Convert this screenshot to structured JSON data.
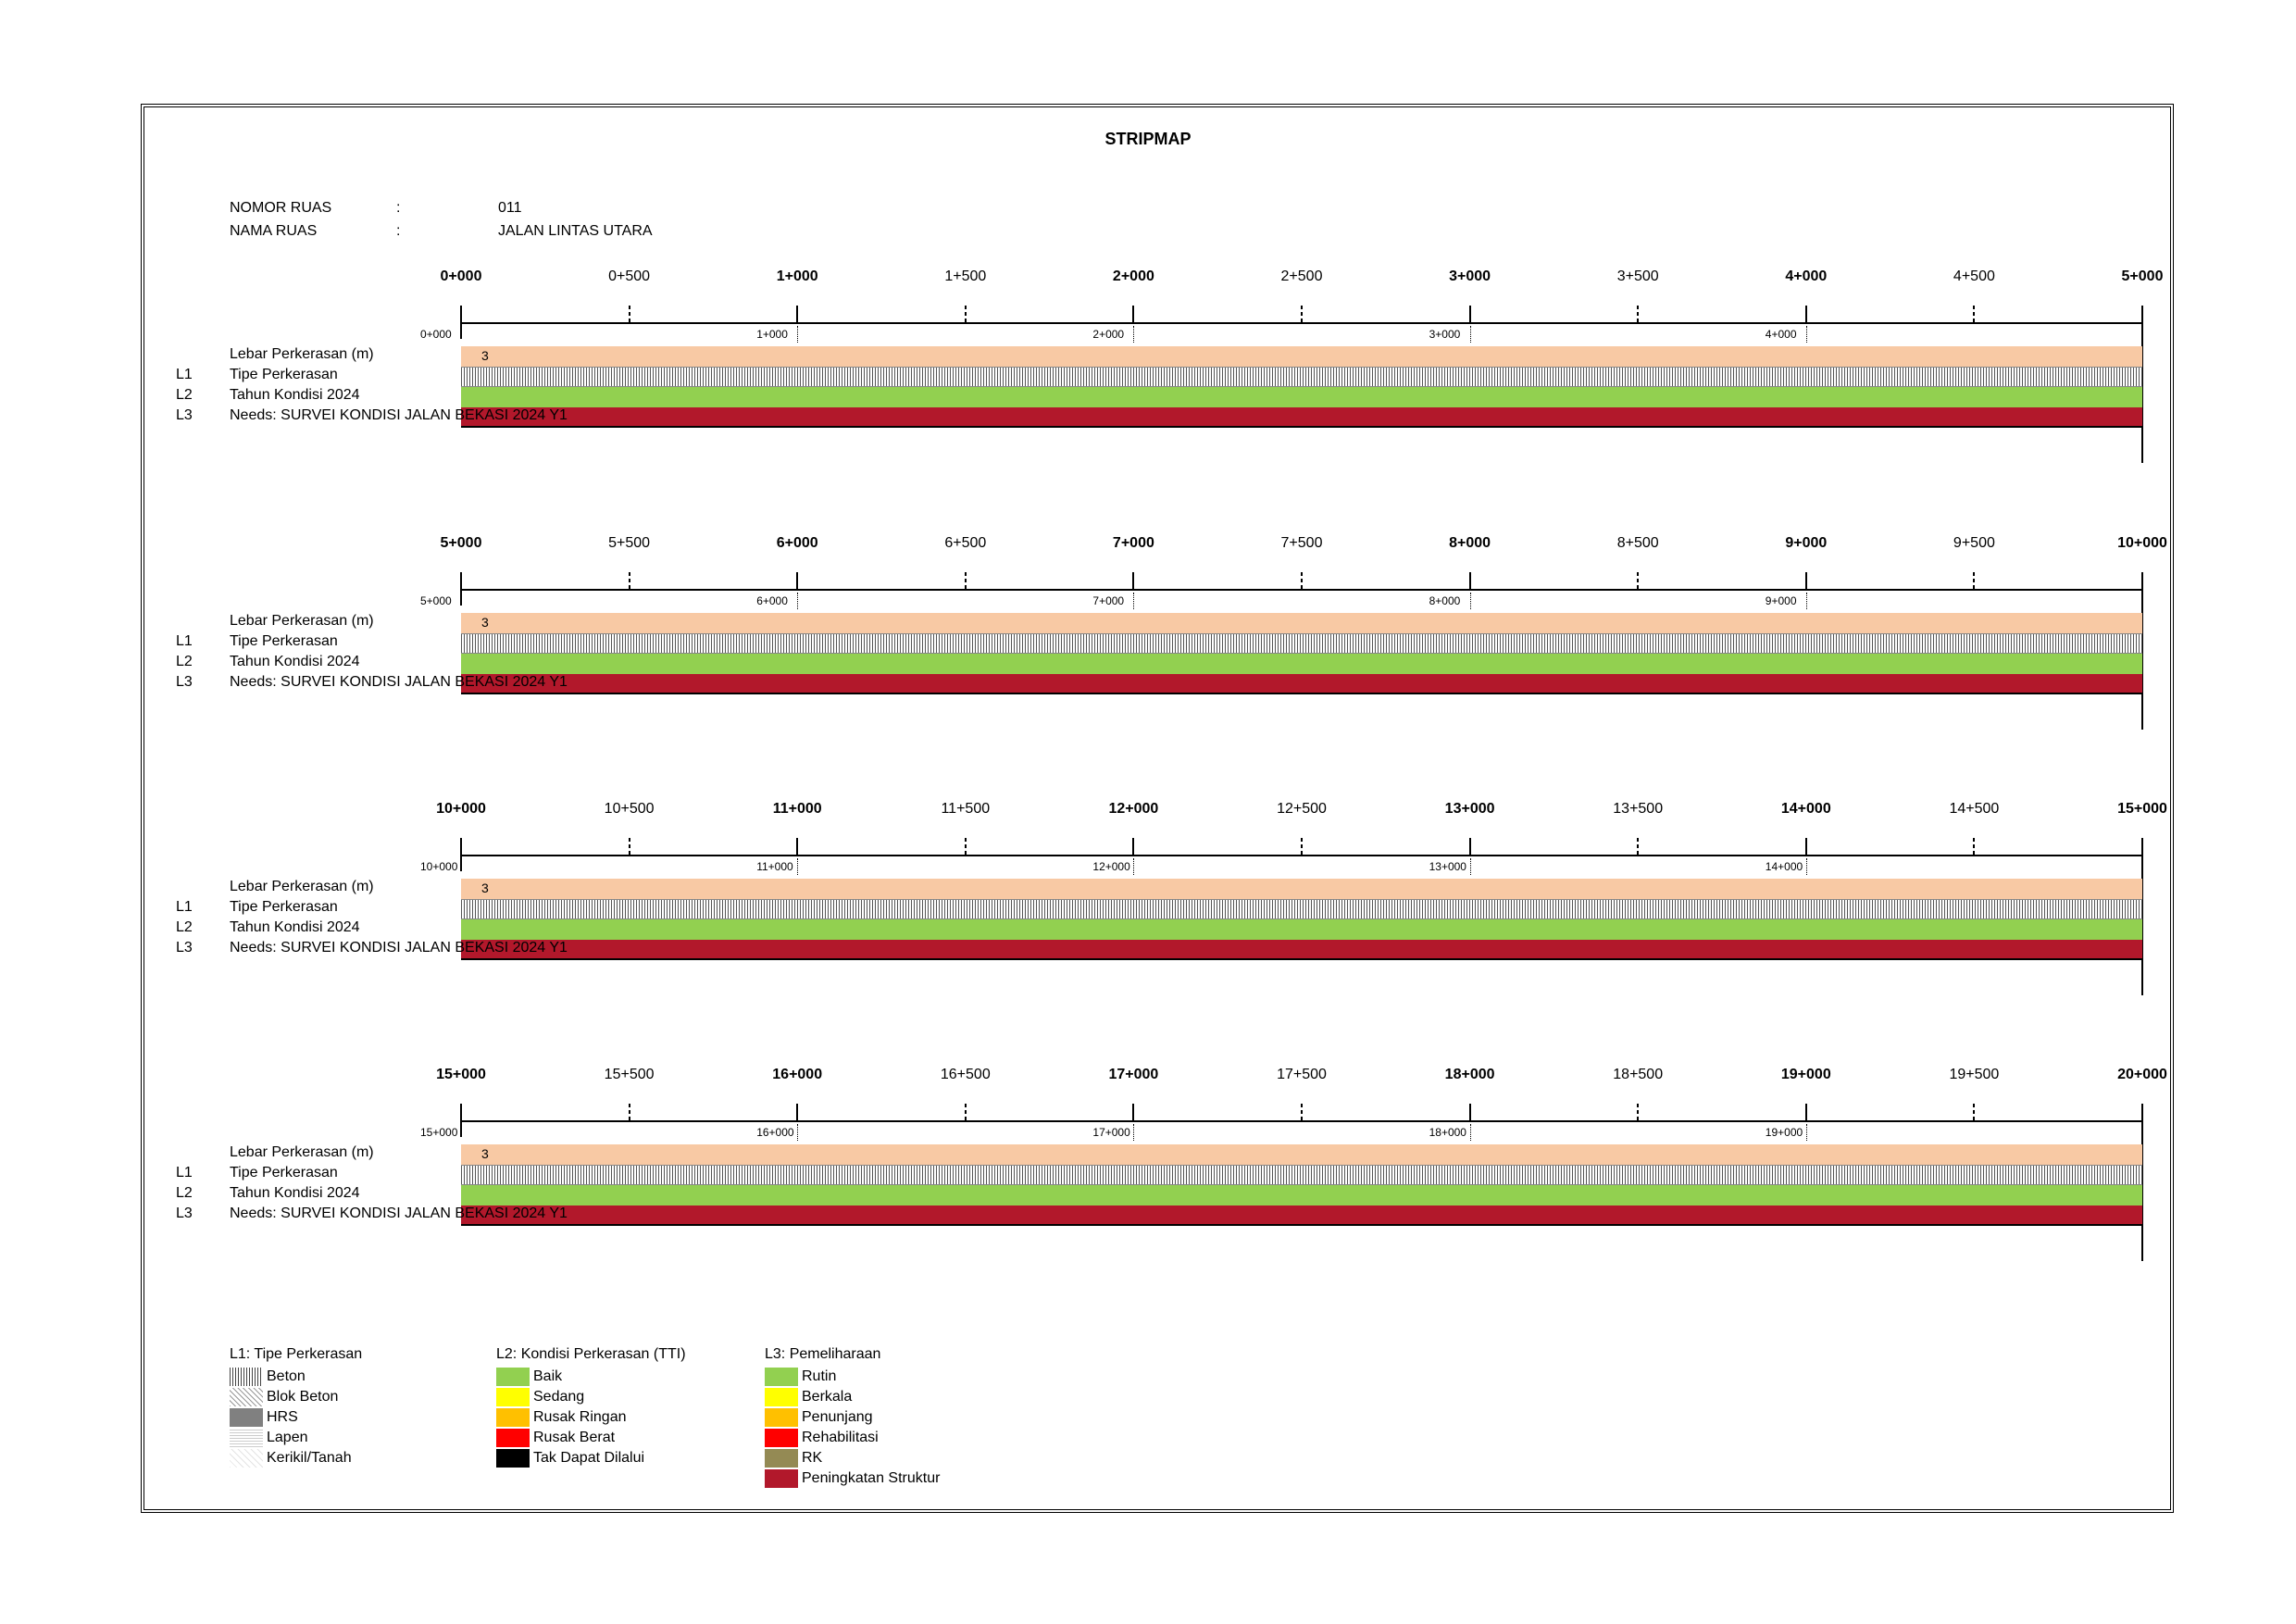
{
  "title": "STRIPMAP",
  "info": {
    "nomor_label": "NOMOR RUAS",
    "nomor_sep": ":",
    "nomor_value": "011",
    "nama_label": "NAMA RUAS",
    "nama_sep": ":",
    "nama_value": "JALAN LINTAS UTARA"
  },
  "row_labels": {
    "lebar": "Lebar Perkerasan (m)",
    "l1_code": "L1",
    "l1": "Tipe Perkerasan",
    "l2_code": "L2",
    "l2": "Tahun Kondisi 2024",
    "l3_code": "L3",
    "l3": "Needs: SURVEI KONDISI JALAN BEKASI 2024 Y1",
    "width_value": "3"
  },
  "segments": [
    {
      "km_labels": [
        "0+000",
        "0+500",
        "1+000",
        "1+500",
        "2+000",
        "2+500",
        "3+000",
        "3+500",
        "4+000",
        "4+500",
        "5+000"
      ],
      "small_labels": [
        "0+000",
        "1+000",
        "2+000",
        "3+000",
        "4+000"
      ]
    },
    {
      "km_labels": [
        "5+000",
        "5+500",
        "6+000",
        "6+500",
        "7+000",
        "7+500",
        "8+000",
        "8+500",
        "9+000",
        "9+500",
        "10+000"
      ],
      "small_labels": [
        "5+000",
        "6+000",
        "7+000",
        "8+000",
        "9+000"
      ]
    },
    {
      "km_labels": [
        "10+000",
        "10+500",
        "11+000",
        "11+500",
        "12+000",
        "12+500",
        "13+000",
        "13+500",
        "14+000",
        "14+500",
        "15+000"
      ],
      "small_labels": [
        "10+000",
        "11+000",
        "12+000",
        "13+000",
        "14+000"
      ]
    },
    {
      "km_labels": [
        "15+000",
        "15+500",
        "16+000",
        "16+500",
        "17+000",
        "17+500",
        "18+000",
        "18+500",
        "19+000",
        "19+500",
        "20+000"
      ],
      "small_labels": [
        "15+000",
        "16+000",
        "17+000",
        "18+000",
        "19+000"
      ]
    }
  ],
  "legend": {
    "l1": {
      "title": "L1: Tipe Perkerasan",
      "items": [
        {
          "label": "Beton",
          "pattern": "beton"
        },
        {
          "label": "Blok Beton",
          "pattern": "blok"
        },
        {
          "label": "HRS",
          "pattern": "hrs"
        },
        {
          "label": "Lapen",
          "pattern": "lapen"
        },
        {
          "label": "Kerikil/Tanah",
          "pattern": "kerikil"
        }
      ]
    },
    "l2": {
      "title": "L2: Kondisi Perkerasan (TTI)",
      "items": [
        {
          "label": "Baik",
          "color": "#92d050"
        },
        {
          "label": "Sedang",
          "color": "#ffff00"
        },
        {
          "label": "Rusak Ringan",
          "color": "#ffc000"
        },
        {
          "label": "Rusak Berat",
          "color": "#ff0000"
        },
        {
          "label": "Tak Dapat Dilalui",
          "color": "#000000"
        }
      ]
    },
    "l3": {
      "title": "L3: Pemeliharaan",
      "items": [
        {
          "label": "Rutin",
          "color": "#92d050"
        },
        {
          "label": "Berkala",
          "color": "#ffff00"
        },
        {
          "label": "Penunjang",
          "color": "#ffc000"
        },
        {
          "label": "Rehabilitasi",
          "color": "#ff0000"
        },
        {
          "label": "RK",
          "color": "#948a54"
        },
        {
          "label": "Peningkatan Struktur",
          "color": "#b2182b"
        }
      ]
    }
  },
  "colors": {
    "width_bar": "#f8c9a4",
    "condition_bar": "#92d050",
    "needs_bar": "#b2182b"
  }
}
